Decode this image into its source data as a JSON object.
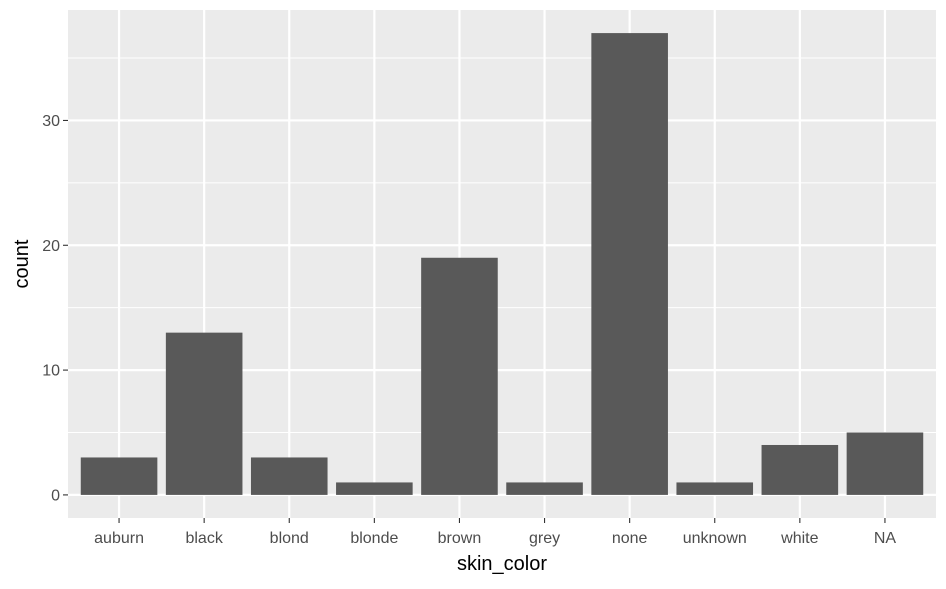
{
  "chart_data": {
    "type": "bar",
    "title": "",
    "xlabel": "skin_color",
    "ylabel": "count",
    "categories": [
      "auburn",
      "black",
      "blond",
      "blonde",
      "brown",
      "grey",
      "none",
      "unknown",
      "white",
      "NA"
    ],
    "values": [
      3,
      13,
      3,
      1,
      19,
      1,
      37,
      1,
      4,
      5
    ],
    "ylim": [
      -1.85,
      38.85
    ],
    "yticks": [
      0,
      10,
      20,
      30
    ],
    "ytick_labels": [
      "0",
      "10",
      "20",
      "30"
    ],
    "grid": true,
    "legend": "none",
    "colors": {
      "panel_background": "#EBEBEB",
      "grid_major": "#FFFFFF",
      "bar_fill": "#595959",
      "tick_label": "#4D4D4D",
      "tick_mark": "#333333",
      "axis_title": "#000000"
    }
  }
}
